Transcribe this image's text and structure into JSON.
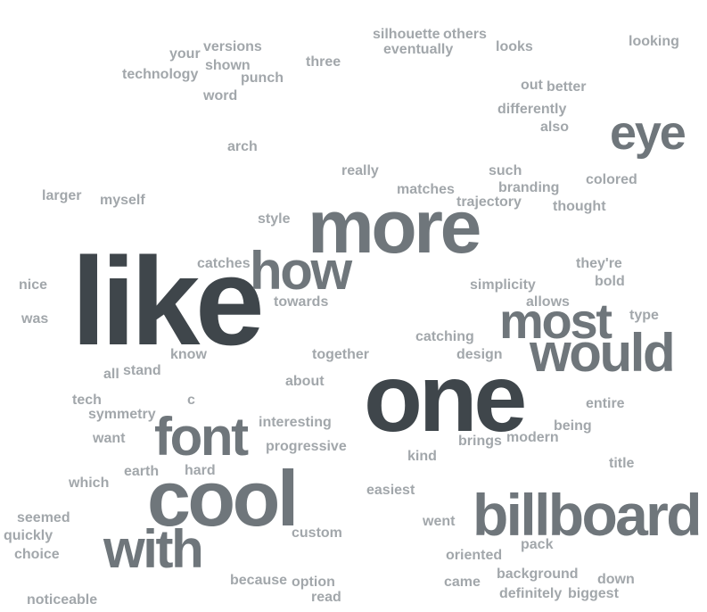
{
  "colors": {
    "dark": "#3f464b",
    "mid": "#6f767b",
    "light": "#a2a7ab"
  },
  "words": [
    {
      "text": "like",
      "weight": 1.0,
      "tone": "dark"
    },
    {
      "text": "one",
      "weight": 0.9,
      "tone": "dark"
    },
    {
      "text": "more",
      "weight": 0.85,
      "tone": "mid"
    },
    {
      "text": "cool",
      "weight": 0.8,
      "tone": "mid"
    },
    {
      "text": "billboard",
      "weight": 0.75,
      "tone": "mid"
    },
    {
      "text": "how",
      "weight": 0.65,
      "tone": "mid"
    },
    {
      "text": "font",
      "weight": 0.6,
      "tone": "mid"
    },
    {
      "text": "with",
      "weight": 0.6,
      "tone": "mid"
    },
    {
      "text": "eye",
      "weight": 0.6,
      "tone": "mid"
    },
    {
      "text": "would",
      "weight": 0.6,
      "tone": "mid"
    },
    {
      "text": "most",
      "weight": 0.55,
      "tone": "mid"
    },
    {
      "text": "silhouette",
      "weight": 0.1,
      "tone": "light"
    },
    {
      "text": "others",
      "weight": 0.1,
      "tone": "light"
    },
    {
      "text": "eventually",
      "weight": 0.1,
      "tone": "light"
    },
    {
      "text": "looks",
      "weight": 0.1,
      "tone": "light"
    },
    {
      "text": "looking",
      "weight": 0.1,
      "tone": "light"
    },
    {
      "text": "versions",
      "weight": 0.1,
      "tone": "light"
    },
    {
      "text": "your",
      "weight": 0.1,
      "tone": "light"
    },
    {
      "text": "shown",
      "weight": 0.1,
      "tone": "light"
    },
    {
      "text": "three",
      "weight": 0.1,
      "tone": "light"
    },
    {
      "text": "technology",
      "weight": 0.1,
      "tone": "light"
    },
    {
      "text": "punch",
      "weight": 0.1,
      "tone": "light"
    },
    {
      "text": "word",
      "weight": 0.1,
      "tone": "light"
    },
    {
      "text": "out",
      "weight": 0.1,
      "tone": "light"
    },
    {
      "text": "better",
      "weight": 0.1,
      "tone": "light"
    },
    {
      "text": "differently",
      "weight": 0.1,
      "tone": "light"
    },
    {
      "text": "also",
      "weight": 0.1,
      "tone": "light"
    },
    {
      "text": "arch",
      "weight": 0.1,
      "tone": "light"
    },
    {
      "text": "really",
      "weight": 0.1,
      "tone": "light"
    },
    {
      "text": "such",
      "weight": 0.1,
      "tone": "light"
    },
    {
      "text": "colored",
      "weight": 0.1,
      "tone": "light"
    },
    {
      "text": "branding",
      "weight": 0.1,
      "tone": "light"
    },
    {
      "text": "matches",
      "weight": 0.1,
      "tone": "light"
    },
    {
      "text": "trajectory",
      "weight": 0.1,
      "tone": "light"
    },
    {
      "text": "thought",
      "weight": 0.1,
      "tone": "light"
    },
    {
      "text": "larger",
      "weight": 0.1,
      "tone": "light"
    },
    {
      "text": "myself",
      "weight": 0.1,
      "tone": "light"
    },
    {
      "text": "style",
      "weight": 0.1,
      "tone": "light"
    },
    {
      "text": "catches",
      "weight": 0.1,
      "tone": "light"
    },
    {
      "text": "they're",
      "weight": 0.1,
      "tone": "light"
    },
    {
      "text": "bold",
      "weight": 0.1,
      "tone": "light"
    },
    {
      "text": "simplicity",
      "weight": 0.1,
      "tone": "light"
    },
    {
      "text": "nice",
      "weight": 0.1,
      "tone": "light"
    },
    {
      "text": "towards",
      "weight": 0.1,
      "tone": "light"
    },
    {
      "text": "allows",
      "weight": 0.1,
      "tone": "light"
    },
    {
      "text": "type",
      "weight": 0.1,
      "tone": "light"
    },
    {
      "text": "was",
      "weight": 0.1,
      "tone": "light"
    },
    {
      "text": "catching",
      "weight": 0.1,
      "tone": "light"
    },
    {
      "text": "know",
      "weight": 0.1,
      "tone": "light"
    },
    {
      "text": "together",
      "weight": 0.1,
      "tone": "light"
    },
    {
      "text": "design",
      "weight": 0.1,
      "tone": "light"
    },
    {
      "text": "all",
      "weight": 0.1,
      "tone": "light"
    },
    {
      "text": "stand",
      "weight": 0.1,
      "tone": "light"
    },
    {
      "text": "about",
      "weight": 0.1,
      "tone": "light"
    },
    {
      "text": "tech",
      "weight": 0.1,
      "tone": "light"
    },
    {
      "text": "c",
      "weight": 0.1,
      "tone": "light"
    },
    {
      "text": "entire",
      "weight": 0.1,
      "tone": "light"
    },
    {
      "text": "symmetry",
      "weight": 0.1,
      "tone": "light"
    },
    {
      "text": "interesting",
      "weight": 0.1,
      "tone": "light"
    },
    {
      "text": "being",
      "weight": 0.1,
      "tone": "light"
    },
    {
      "text": "want",
      "weight": 0.1,
      "tone": "light"
    },
    {
      "text": "brings",
      "weight": 0.1,
      "tone": "light"
    },
    {
      "text": "modern",
      "weight": 0.1,
      "tone": "light"
    },
    {
      "text": "progressive",
      "weight": 0.1,
      "tone": "light"
    },
    {
      "text": "earth",
      "weight": 0.1,
      "tone": "light"
    },
    {
      "text": "hard",
      "weight": 0.1,
      "tone": "light"
    },
    {
      "text": "kind",
      "weight": 0.1,
      "tone": "light"
    },
    {
      "text": "title",
      "weight": 0.1,
      "tone": "light"
    },
    {
      "text": "which",
      "weight": 0.1,
      "tone": "light"
    },
    {
      "text": "easiest",
      "weight": 0.1,
      "tone": "light"
    },
    {
      "text": "seemed",
      "weight": 0.1,
      "tone": "light"
    },
    {
      "text": "went",
      "weight": 0.1,
      "tone": "light"
    },
    {
      "text": "quickly",
      "weight": 0.1,
      "tone": "light"
    },
    {
      "text": "custom",
      "weight": 0.1,
      "tone": "light"
    },
    {
      "text": "pack",
      "weight": 0.1,
      "tone": "light"
    },
    {
      "text": "choice",
      "weight": 0.1,
      "tone": "light"
    },
    {
      "text": "oriented",
      "weight": 0.1,
      "tone": "light"
    },
    {
      "text": "background",
      "weight": 0.1,
      "tone": "light"
    },
    {
      "text": "because",
      "weight": 0.1,
      "tone": "light"
    },
    {
      "text": "option",
      "weight": 0.1,
      "tone": "light"
    },
    {
      "text": "came",
      "weight": 0.1,
      "tone": "light"
    },
    {
      "text": "down",
      "weight": 0.1,
      "tone": "light"
    },
    {
      "text": "read",
      "weight": 0.1,
      "tone": "light"
    },
    {
      "text": "definitely",
      "weight": 0.1,
      "tone": "light"
    },
    {
      "text": "biggest",
      "weight": 0.1,
      "tone": "light"
    },
    {
      "text": "noticeable",
      "weight": 0.1,
      "tone": "light"
    }
  ]
}
